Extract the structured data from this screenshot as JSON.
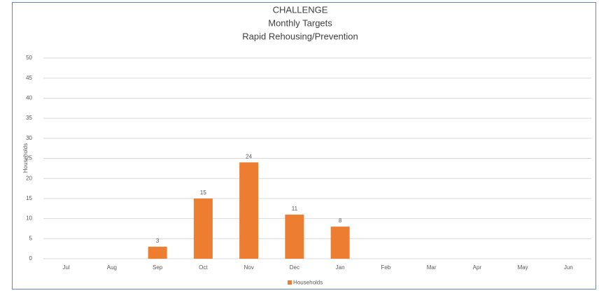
{
  "chart_data": {
    "type": "bar",
    "title": [
      "CHALLENGE",
      "Monthly Targets",
      "Rapid Rehousing/Prevention"
    ],
    "ylabel": "Households",
    "categories": [
      "Jul",
      "Aug",
      "Sep",
      "Oct",
      "Nov",
      "Dec",
      "Jan",
      "Feb",
      "Mar",
      "Apr",
      "May",
      "Jun"
    ],
    "series": [
      {
        "name": "Households",
        "color": "#ed7d31",
        "values": [
          null,
          null,
          3,
          15,
          24,
          11,
          8,
          null,
          null,
          null,
          null,
          null
        ]
      }
    ],
    "ylim": [
      0,
      50
    ],
    "yticks": [
      0,
      5,
      10,
      15,
      20,
      25,
      30,
      35,
      40,
      45,
      50
    ],
    "grid": true,
    "legend": "bottom",
    "data_labels": true
  }
}
